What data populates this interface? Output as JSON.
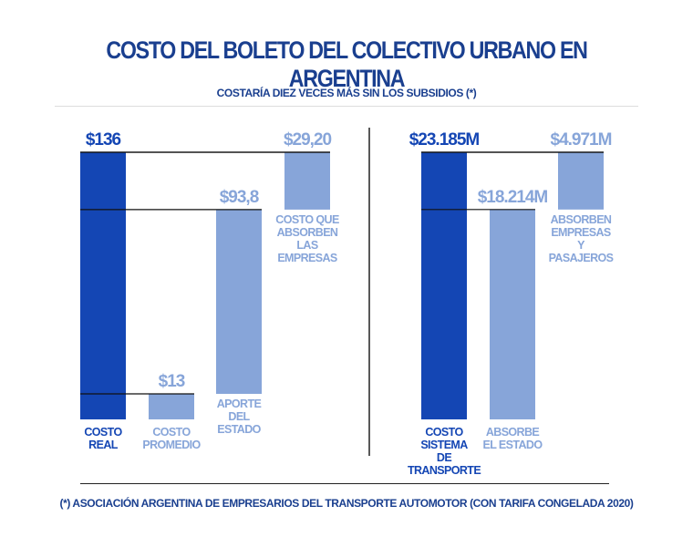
{
  "title": "COSTO DEL BOLETO DEL COLECTIVO URBANO EN ARGENTINA",
  "subtitle": "COSTARÍA DIEZ VECES MÁS SIN LOS SUBSIDIOS (*)",
  "footer": "(*) ASOCIACIÓN ARGENTINA DE EMPRESARIOS DEL TRANSPORTE AUTOMOTOR (CON TARIFA CONGELADA 2020)",
  "colors": {
    "dark": "#1446b4",
    "light": "#87a5d9",
    "title": "#1a3f8f"
  },
  "chart_data": [
    {
      "type": "bar",
      "subtype": "waterfall",
      "categories": [
        "COSTO REAL",
        "COSTO PROMEDIO",
        "APORTE DEL ESTADO",
        "COSTO QUE ABSORBEN LAS EMPRESAS"
      ],
      "values": [
        136,
        13,
        93.8,
        29.2
      ],
      "bases": [
        0,
        0,
        13,
        106.8
      ],
      "labels": [
        "$136",
        "$13",
        "$93,8",
        "$29,20"
      ],
      "ylim": [
        0,
        136
      ]
    },
    {
      "type": "bar",
      "subtype": "waterfall",
      "categories": [
        "COSTO SISTEMA DE TRANSPORTE",
        "ABSORBE EL ESTADO",
        "ABSORBEN EMPRESAS Y PASAJEROS"
      ],
      "values": [
        23185,
        18214,
        4971
      ],
      "bases": [
        0,
        0,
        18214
      ],
      "labels": [
        "$23.185M",
        "$18.214M",
        "$4.971M"
      ],
      "ylim": [
        0,
        23185
      ]
    }
  ]
}
